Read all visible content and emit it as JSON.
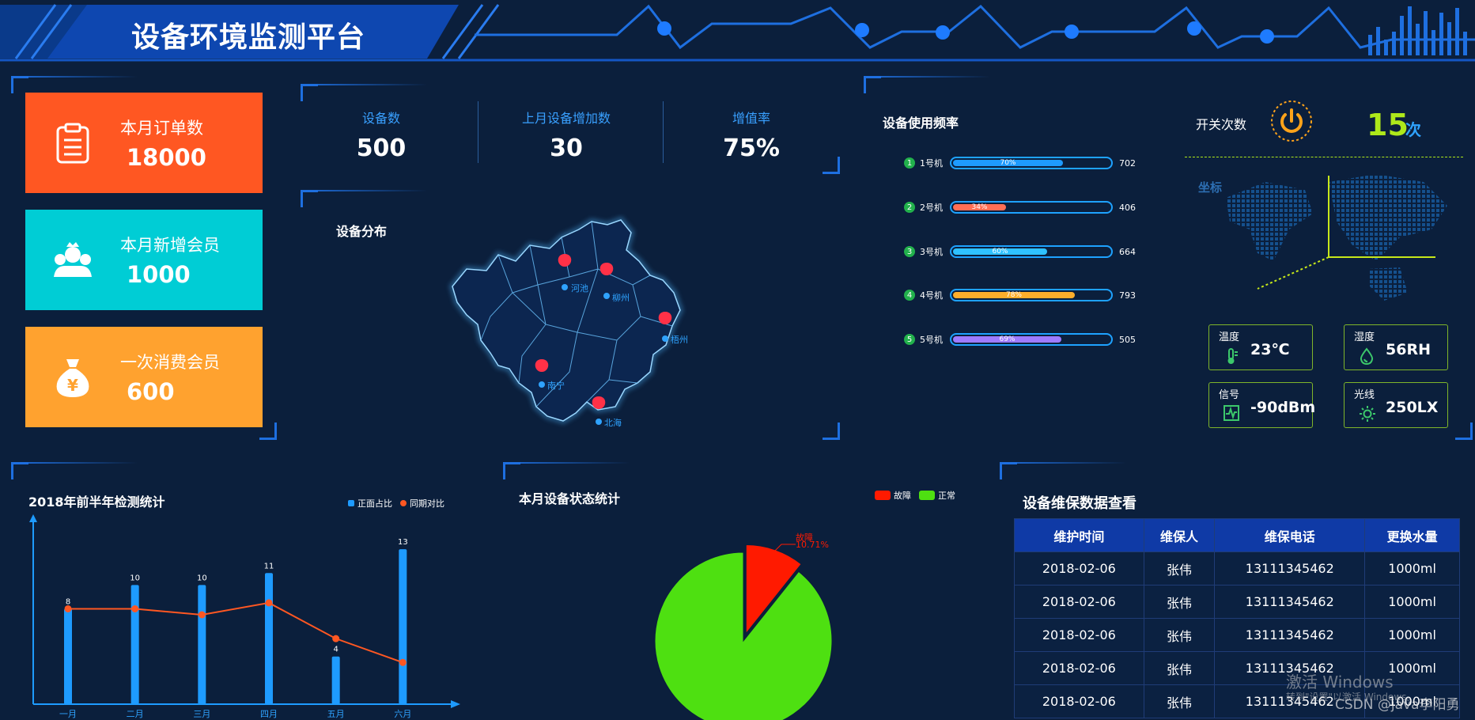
{
  "header": {
    "title": "设备环境监测平台"
  },
  "kpi_cards": [
    {
      "label": "本月订单数",
      "value": "18000",
      "color": "#ff5722",
      "icon": "clipboard-icon"
    },
    {
      "label": "本月新增会员",
      "value": "1000",
      "color": "#00cdd5",
      "icon": "member-group-icon"
    },
    {
      "label": "一次消费会员",
      "value": "600",
      "color": "#ffa22f",
      "icon": "money-bag-icon"
    }
  ],
  "stats": [
    {
      "label": "设备数",
      "value": "500"
    },
    {
      "label": "上月设备增加数",
      "value": "30"
    },
    {
      "label": "增值率",
      "value": "75%"
    }
  ],
  "map": {
    "title": "设备分布",
    "cities": [
      "河池",
      "柳州",
      "梧州",
      "南宁",
      "北海"
    ]
  },
  "usage": {
    "title": "设备使用频率",
    "items": [
      {
        "index": "1",
        "name": "1号机",
        "percent": "70%",
        "fraction": 0.7,
        "count": "702",
        "color": "#1e9bff"
      },
      {
        "index": "2",
        "name": "2号机",
        "percent": "34%",
        "fraction": 0.34,
        "count": "406",
        "color": "#ff6e54"
      },
      {
        "index": "3",
        "name": "3号机",
        "percent": "60%",
        "fraction": 0.6,
        "count": "664",
        "color": "#2fc1ff"
      },
      {
        "index": "4",
        "name": "4号机",
        "percent": "78%",
        "fraction": 0.78,
        "count": "793",
        "color": "#ffae2b"
      },
      {
        "index": "5",
        "name": "5号机",
        "percent": "69%",
        "fraction": 0.69,
        "count": "505",
        "color": "#9e7bff"
      }
    ]
  },
  "switch": {
    "label": "开关次数",
    "value": "15",
    "unit": "次",
    "icon": "power-icon"
  },
  "coord": {
    "label": "坐标"
  },
  "sensors": [
    {
      "label": "温度",
      "value": "23℃",
      "icon": "thermometer-icon"
    },
    {
      "label": "湿度",
      "value": "56RH",
      "icon": "humidity-drop-icon"
    },
    {
      "label": "信号",
      "value": "-90dBm",
      "icon": "signal-icon"
    },
    {
      "label": "光线",
      "value": "250LX",
      "icon": "sun-icon"
    }
  ],
  "bar_chart": {
    "title": "2018年前半年检测统计",
    "legend": [
      "正面占比",
      "同期对比"
    ]
  },
  "pie_chart": {
    "title": "本月设备状态统计",
    "legend": [
      "故障",
      "正常"
    ],
    "fault_label": "故障",
    "fault_percent": "10.71%"
  },
  "chart_data": [
    {
      "type": "bar",
      "title": "2018年前半年检测统计",
      "categories": [
        "一月",
        "二月",
        "三月",
        "四月",
        "五月",
        "六月"
      ],
      "series": [
        {
          "name": "正面占比",
          "type": "bar",
          "values": [
            8,
            10,
            10,
            11,
            4,
            13
          ],
          "color": "#1e9bff"
        },
        {
          "name": "同期对比",
          "type": "line",
          "values": [
            8,
            8,
            7.5,
            8.5,
            5.5,
            3.5
          ],
          "color": "#ff5722"
        }
      ],
      "ylim": [
        0,
        15
      ]
    },
    {
      "type": "pie",
      "title": "本月设备状态统计",
      "slices": [
        {
          "name": "故障",
          "value": 10.71,
          "color": "#ff1a00"
        },
        {
          "name": "正常",
          "value": 89.29,
          "color": "#4ee011"
        }
      ]
    }
  ],
  "maintenance": {
    "title": "设备维保数据查看",
    "columns": [
      "维护时间",
      "维保人",
      "维保电话",
      "更换水量"
    ],
    "rows": [
      [
        "2018-02-06",
        "张伟",
        "13111345462",
        "1000ml"
      ],
      [
        "2018-02-06",
        "张伟",
        "13111345462",
        "1000ml"
      ],
      [
        "2018-02-06",
        "张伟",
        "13111345462",
        "1000ml"
      ],
      [
        "2018-02-06",
        "张伟",
        "13111345462",
        "1000ml"
      ],
      [
        "2018-02-06",
        "张伟",
        "13111345462",
        "1000ml"
      ]
    ]
  },
  "watermarks": {
    "windows": "激活 Windows",
    "windows_sub": "转到\"设置\"以激活 Windows。",
    "csdn": "CSDN @java李阳勇"
  }
}
